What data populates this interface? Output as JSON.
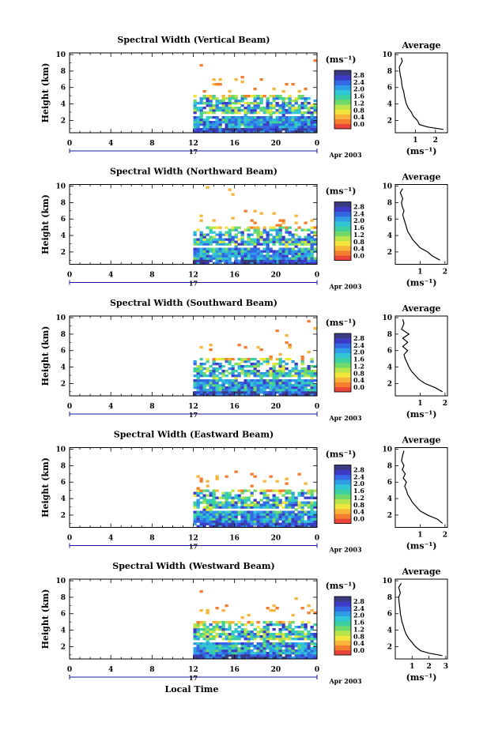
{
  "figure": {
    "xlabel_bottom": "Local Time",
    "date_label": "Apr 2003",
    "day_label": "17",
    "ylabel": "Height (km)",
    "unit_label": "(ms⁻¹)",
    "avg_title": "Average",
    "avg_xlabel": "(ms⁻¹)"
  },
  "colorbar": {
    "ticks": [
      "2.8",
      "2.4",
      "2.0",
      "1.6",
      "1.2",
      "0.8",
      "0.4",
      "0.0"
    ],
    "colors": [
      "#e8443a",
      "#f57d2e",
      "#f9b53a",
      "#f0e63c",
      "#b9e44a",
      "#6fd96a",
      "#3ccfa0",
      "#30c6d6",
      "#2f9de6",
      "#3467e3",
      "#3e3ac8",
      "#3a3a80"
    ]
  },
  "chart_data": [
    {
      "type": "heatmap",
      "title": "Spectral Width (Vertical Beam)",
      "x_ticks": [
        "0",
        "4",
        "8",
        "12",
        "16",
        "20",
        "0"
      ],
      "y_ticks": [
        "2",
        "4",
        "6",
        "8",
        "10"
      ],
      "xlim": [
        0,
        24
      ],
      "ylim": [
        0.5,
        10.2
      ],
      "avg": {
        "x_ticks": [
          "1",
          "2"
        ],
        "xlim": [
          0,
          2.6
        ],
        "y_ticks": [
          "2",
          "4",
          "6",
          "8",
          "10"
        ],
        "profile": [
          [
            2.4,
            0.9
          ],
          [
            1.6,
            1.2
          ],
          [
            1.2,
            1.5
          ],
          [
            1.1,
            2
          ],
          [
            0.9,
            2.5
          ],
          [
            0.8,
            3
          ],
          [
            0.65,
            3.5
          ],
          [
            0.55,
            4
          ],
          [
            0.5,
            4.5
          ],
          [
            0.45,
            5
          ],
          [
            0.42,
            5.5
          ],
          [
            0.35,
            6
          ],
          [
            0.32,
            6.5
          ],
          [
            0.3,
            7
          ],
          [
            0.25,
            7.5
          ],
          [
            0.22,
            8
          ],
          [
            0.2,
            8.5
          ],
          [
            0.35,
            9.2
          ],
          [
            0.3,
            9.6
          ]
        ]
      }
    },
    {
      "type": "heatmap",
      "title": "Spectral Width (Northward Beam)",
      "x_ticks": [
        "0",
        "4",
        "8",
        "12",
        "16",
        "20",
        "0"
      ],
      "y_ticks": [
        "2",
        "4",
        "6",
        "8",
        "10"
      ],
      "xlim": [
        0,
        24
      ],
      "ylim": [
        0.5,
        10.2
      ],
      "avg": {
        "x_ticks": [
          "1",
          "2"
        ],
        "xlim": [
          0,
          2.1
        ],
        "y_ticks": [
          "2",
          "4",
          "6",
          "8",
          "10"
        ],
        "profile": [
          [
            1.8,
            1.0
          ],
          [
            1.5,
            1.5
          ],
          [
            1.3,
            2.0
          ],
          [
            1.0,
            2.5
          ],
          [
            0.85,
            3
          ],
          [
            0.7,
            3.5
          ],
          [
            0.6,
            4
          ],
          [
            0.5,
            4.5
          ],
          [
            0.45,
            5
          ],
          [
            0.4,
            5.5
          ],
          [
            0.35,
            6
          ],
          [
            0.3,
            6.5
          ],
          [
            0.35,
            7
          ],
          [
            0.28,
            7.5
          ],
          [
            0.25,
            8
          ],
          [
            0.3,
            8.5
          ],
          [
            0.2,
            9.2
          ],
          [
            0.3,
            9.7
          ]
        ]
      }
    },
    {
      "type": "heatmap",
      "title": "Spectral Width (Southward Beam)",
      "x_ticks": [
        "0",
        "4",
        "8",
        "12",
        "16",
        "20",
        "0"
      ],
      "y_ticks": [
        "2",
        "4",
        "6",
        "8",
        "10"
      ],
      "xlim": [
        0,
        24
      ],
      "ylim": [
        0.5,
        10.2
      ],
      "avg": {
        "x_ticks": [
          "1",
          "2"
        ],
        "xlim": [
          0,
          2.1
        ],
        "y_ticks": [
          "2",
          "4",
          "6",
          "8",
          "10"
        ],
        "profile": [
          [
            1.9,
            1.0
          ],
          [
            1.6,
            1.5
          ],
          [
            1.2,
            2.0
          ],
          [
            0.95,
            2.5
          ],
          [
            0.8,
            3
          ],
          [
            0.65,
            3.5
          ],
          [
            0.55,
            4
          ],
          [
            0.48,
            4.5
          ],
          [
            0.4,
            5
          ],
          [
            0.35,
            5.5
          ],
          [
            0.5,
            6
          ],
          [
            0.3,
            6.5
          ],
          [
            0.5,
            7
          ],
          [
            0.3,
            7.5
          ],
          [
            0.55,
            8
          ],
          [
            0.25,
            8.6
          ],
          [
            0.35,
            9.3
          ],
          [
            0.3,
            9.8
          ]
        ]
      }
    },
    {
      "type": "heatmap",
      "title": "Spectral Width (Eastward Beam)",
      "x_ticks": [
        "0",
        "4",
        "8",
        "12",
        "16",
        "20",
        "0"
      ],
      "y_ticks": [
        "2",
        "4",
        "6",
        "8",
        "10"
      ],
      "xlim": [
        0,
        24
      ],
      "ylim": [
        0.5,
        10.2
      ],
      "avg": {
        "x_ticks": [
          "1",
          "2"
        ],
        "xlim": [
          0,
          2.1
        ],
        "y_ticks": [
          "2",
          "4",
          "6",
          "8",
          "10"
        ],
        "profile": [
          [
            1.9,
            1.0
          ],
          [
            1.7,
            1.5
          ],
          [
            1.3,
            2.0
          ],
          [
            1.0,
            2.5
          ],
          [
            0.85,
            3
          ],
          [
            0.7,
            3.5
          ],
          [
            0.6,
            4
          ],
          [
            0.5,
            4.5
          ],
          [
            0.45,
            5
          ],
          [
            0.38,
            5.5
          ],
          [
            0.45,
            6
          ],
          [
            0.32,
            6.5
          ],
          [
            0.4,
            7
          ],
          [
            0.28,
            7.5
          ],
          [
            0.35,
            8
          ],
          [
            0.25,
            8.6
          ],
          [
            0.3,
            9.3
          ],
          [
            0.35,
            9.8
          ]
        ]
      }
    },
    {
      "type": "heatmap",
      "title": "Spectral Width (Westward Beam)",
      "x_ticks": [
        "0",
        "4",
        "8",
        "12",
        "16",
        "20",
        "0"
      ],
      "y_ticks": [
        "2",
        "4",
        "6",
        "8",
        "10"
      ],
      "xlim": [
        0,
        24
      ],
      "ylim": [
        0.5,
        10.2
      ],
      "avg": {
        "x_ticks": [
          "1",
          "2",
          "3"
        ],
        "xlim": [
          0,
          3.1
        ],
        "y_ticks": [
          "2",
          "4",
          "6",
          "8",
          "10"
        ],
        "profile": [
          [
            2.8,
            0.9
          ],
          [
            2.0,
            1.2
          ],
          [
            1.5,
            1.5
          ],
          [
            1.2,
            2.0
          ],
          [
            1.0,
            2.5
          ],
          [
            0.8,
            3
          ],
          [
            0.65,
            3.5
          ],
          [
            0.55,
            4
          ],
          [
            0.48,
            4.5
          ],
          [
            0.4,
            5
          ],
          [
            0.35,
            5.5
          ],
          [
            0.3,
            6
          ],
          [
            0.28,
            6.5
          ],
          [
            0.25,
            7
          ],
          [
            0.22,
            7.5
          ],
          [
            0.2,
            8
          ],
          [
            0.3,
            8.5
          ],
          [
            0.2,
            9.2
          ],
          [
            0.35,
            9.7
          ]
        ]
      }
    }
  ]
}
